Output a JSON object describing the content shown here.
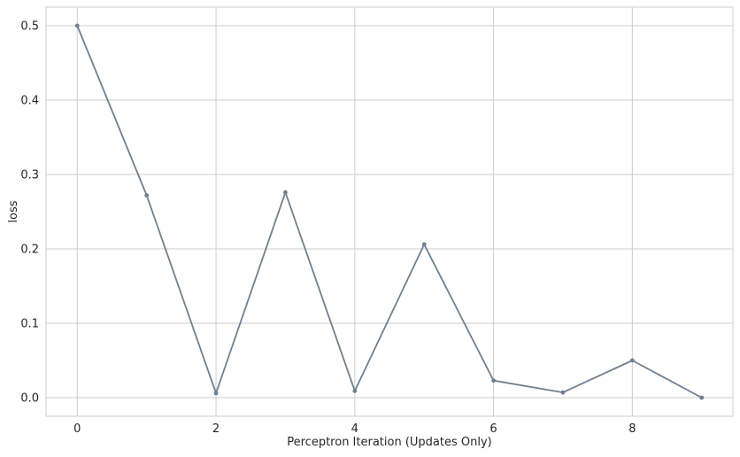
{
  "chart_data": {
    "type": "line",
    "title": "",
    "xlabel": "Perceptron Iteration (Updates Only)",
    "ylabel": "loss",
    "x": [
      0,
      1,
      2,
      3,
      4,
      5,
      6,
      7,
      8,
      9
    ],
    "series": [
      {
        "values": [
          0.5,
          0.272,
          0.006,
          0.276,
          0.009,
          0.206,
          0.023,
          0.007,
          0.05,
          0.0
        ],
        "color": "#708090",
        "marker": "point"
      }
    ],
    "xlim": [
      -0.45,
      9.45
    ],
    "ylim": [
      -0.025,
      0.525
    ],
    "xticks": [
      0,
      2,
      4,
      6,
      8
    ],
    "xtick_labels": [
      "0",
      "2",
      "4",
      "6",
      "8"
    ],
    "yticks": [
      0.0,
      0.1,
      0.2,
      0.3,
      0.4,
      0.5
    ],
    "ytick_labels": [
      "0.0",
      "0.1",
      "0.2",
      "0.3",
      "0.4",
      "0.5"
    ],
    "grid": true,
    "legend": "none",
    "style": {
      "grid_color": "#cccccc",
      "frame_color": "#cccccc",
      "background": "#ffffff"
    }
  }
}
